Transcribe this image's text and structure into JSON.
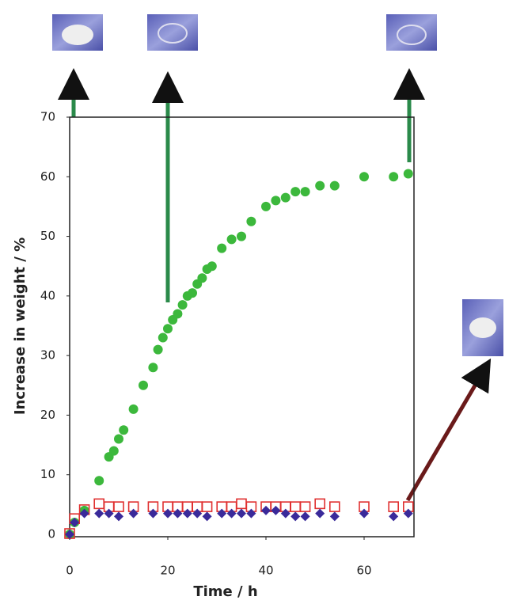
{
  "chart_data": {
    "type": "scatter",
    "xlabel": "Time / h",
    "ylabel": "Increase in weight / %",
    "xlim": [
      0,
      70
    ],
    "ylim": [
      0,
      70
    ],
    "xticks": [
      0,
      20,
      40,
      60
    ],
    "yticks": [
      0,
      10,
      20,
      30,
      40,
      50,
      60,
      70
    ],
    "series": [
      {
        "color": "#3cb83c",
        "marker": "circle",
        "x": [
          0,
          1,
          3,
          6,
          8,
          9,
          10,
          11,
          13,
          15,
          17,
          18,
          19,
          20,
          21,
          22,
          23,
          24,
          25,
          26,
          27,
          28,
          29,
          31,
          33,
          35,
          37,
          40,
          42,
          44,
          46,
          48,
          51,
          54,
          60,
          66,
          69
        ],
        "values": [
          0,
          2,
          4,
          9,
          13,
          14,
          16,
          17.5,
          21,
          25,
          28,
          31,
          33,
          34.5,
          36,
          37,
          38.5,
          40,
          40.5,
          42,
          43,
          44.5,
          45,
          48,
          49.5,
          50,
          52.5,
          55,
          56,
          56.5,
          57.5,
          57.5,
          58.5,
          58.5,
          60,
          60,
          60.5
        ]
      },
      {
        "color": "#e03030",
        "marker": "square",
        "x": [
          0,
          1,
          3,
          6,
          8,
          10,
          13,
          17,
          20,
          22,
          24,
          26,
          28,
          31,
          33,
          35,
          37,
          40,
          42,
          44,
          46,
          48,
          51,
          54,
          60,
          66,
          69
        ],
        "values": [
          0,
          2.5,
          4,
          5,
          4.5,
          4.5,
          4.5,
          4.5,
          4.5,
          4.5,
          4.5,
          4.5,
          4.5,
          4.5,
          4.5,
          5,
          4.5,
          4.5,
          4.5,
          4.5,
          4.5,
          4.5,
          5,
          4.5,
          4.5,
          4.5,
          4.5
        ]
      },
      {
        "color": "#3a2a9a",
        "marker": "diamond",
        "x": [
          0,
          1,
          3,
          6,
          8,
          10,
          13,
          17,
          20,
          22,
          24,
          26,
          28,
          31,
          33,
          35,
          37,
          40,
          42,
          44,
          46,
          48,
          51,
          54,
          60,
          66,
          69
        ],
        "values": [
          0,
          2,
          3.5,
          3.5,
          3.5,
          3,
          3.5,
          3.5,
          3.5,
          3.5,
          3.5,
          3.5,
          3,
          3.5,
          3.5,
          3.5,
          3.5,
          4,
          4,
          3.5,
          3,
          3,
          3.5,
          3,
          3.5,
          3,
          3.5
        ]
      }
    ]
  }
}
